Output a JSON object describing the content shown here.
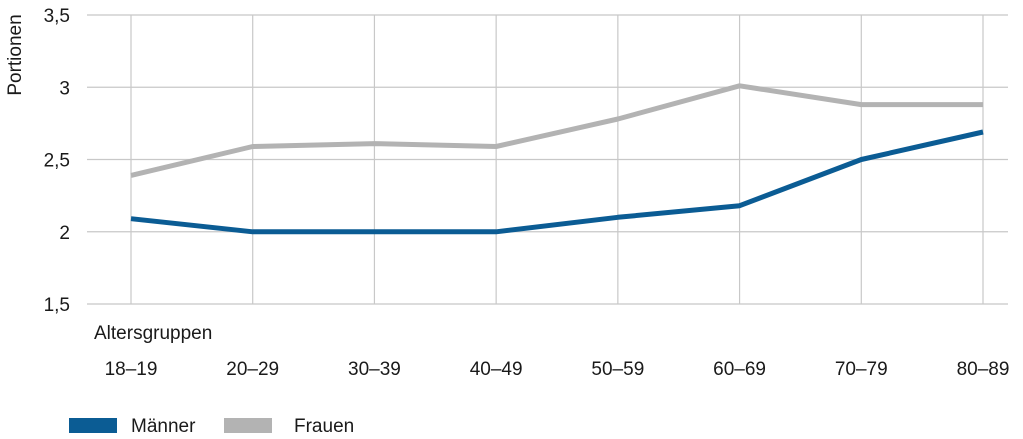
{
  "chart_data": {
    "type": "line",
    "xlabel": "Altersgruppen",
    "ylabel": "Portionen",
    "categories": [
      "18–19",
      "20–29",
      "30–39",
      "40–49",
      "50–59",
      "60–69",
      "70–79",
      "80–89"
    ],
    "ylim": [
      1.5,
      3.5
    ],
    "yticks": [
      1.5,
      2,
      2.5,
      3,
      3.5
    ],
    "ytick_labels": [
      "1,5",
      "2",
      "2,5",
      "3",
      "3,5"
    ],
    "grid": "vertical and horizontal",
    "legend_position": "bottom-left",
    "series": [
      {
        "name": "Männer",
        "color": "#0b5c94",
        "values": [
          2.09,
          2.0,
          2.0,
          2.0,
          2.1,
          2.18,
          2.5,
          2.69
        ]
      },
      {
        "name": "Frauen",
        "color": "#b3b3b3",
        "values": [
          2.39,
          2.59,
          2.61,
          2.59,
          2.78,
          3.01,
          2.88,
          2.88
        ]
      }
    ]
  }
}
